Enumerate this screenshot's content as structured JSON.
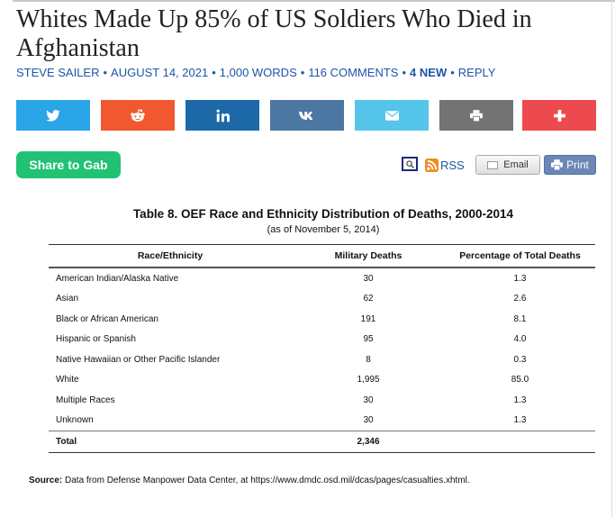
{
  "article": {
    "title": "Whites Made Up 85% of US Soldiers Who Died in Afghanistan",
    "author": "STEVE SAILER",
    "date": "AUGUST 14, 2021",
    "words": "1,000 WORDS",
    "comments": "116 COMMENTS",
    "new_count": "4 NEW",
    "reply": "REPLY"
  },
  "share": {
    "gab_label": "Share to Gab",
    "buttons": [
      {
        "name": "twitter",
        "color": "#2aa5e8"
      },
      {
        "name": "reddit",
        "color": "#f1582f"
      },
      {
        "name": "linkedin",
        "color": "#1d69a8"
      },
      {
        "name": "vk",
        "color": "#4c77a3"
      },
      {
        "name": "email",
        "color": "#55c5ea"
      },
      {
        "name": "print",
        "color": "#737373"
      },
      {
        "name": "more",
        "color": "#ec4a4f"
      }
    ]
  },
  "tools": {
    "rss_label": "RSS",
    "email_label": "Email",
    "print_label": "Print"
  },
  "table": {
    "caption": "Table 8. OEF Race and Ethnicity Distribution of Deaths, 2000-2014",
    "subcaption": "(as of November 5, 2014)",
    "headers": [
      "Race/Ethnicity",
      "Military Deaths",
      "Percentage of Total Deaths"
    ],
    "rows": [
      [
        "American Indian/Alaska Native",
        "30",
        "1.3"
      ],
      [
        "Asian",
        "62",
        "2.6"
      ],
      [
        "Black or African American",
        "191",
        "8.1"
      ],
      [
        "Hispanic or Spanish",
        "95",
        "4.0"
      ],
      [
        "Native Hawaiian or Other Pacific Islander",
        "8",
        "0.3"
      ],
      [
        "White",
        "1,995",
        "85.0"
      ],
      [
        "Multiple Races",
        "30",
        "1.3"
      ],
      [
        "Unknown",
        "30",
        "1.3"
      ]
    ],
    "total": [
      "Total",
      "2,346",
      ""
    ],
    "source_label": "Source:",
    "source_text": "Data from Defense Manpower Data Center, at https://www.dmdc.osd.mil/dcas/pages/casualties.xhtml."
  }
}
